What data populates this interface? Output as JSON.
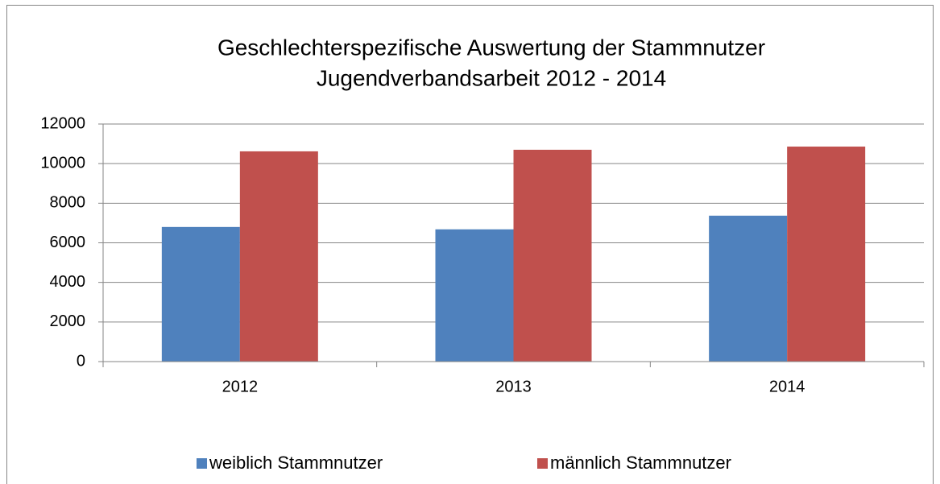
{
  "chart_data": {
    "type": "bar",
    "title": [
      "Geschlechterspezifische Auswertung der Stammnutzer",
      "Jugendverbandsarbeit 2012 - 2014"
    ],
    "categories": [
      "2012",
      "2013",
      "2014"
    ],
    "series": [
      {
        "name": "weiblich Stammnutzer",
        "color": "#4f81bd",
        "values": [
          6800,
          6680,
          7370
        ]
      },
      {
        "name": "männlich Stammnutzer",
        "color": "#c0504d",
        "values": [
          10620,
          10700,
          10860
        ]
      }
    ],
    "ylim": [
      0,
      12000
    ],
    "yticks": [
      0,
      2000,
      4000,
      6000,
      8000,
      10000,
      12000
    ],
    "grid": true,
    "legend": "bottom"
  }
}
